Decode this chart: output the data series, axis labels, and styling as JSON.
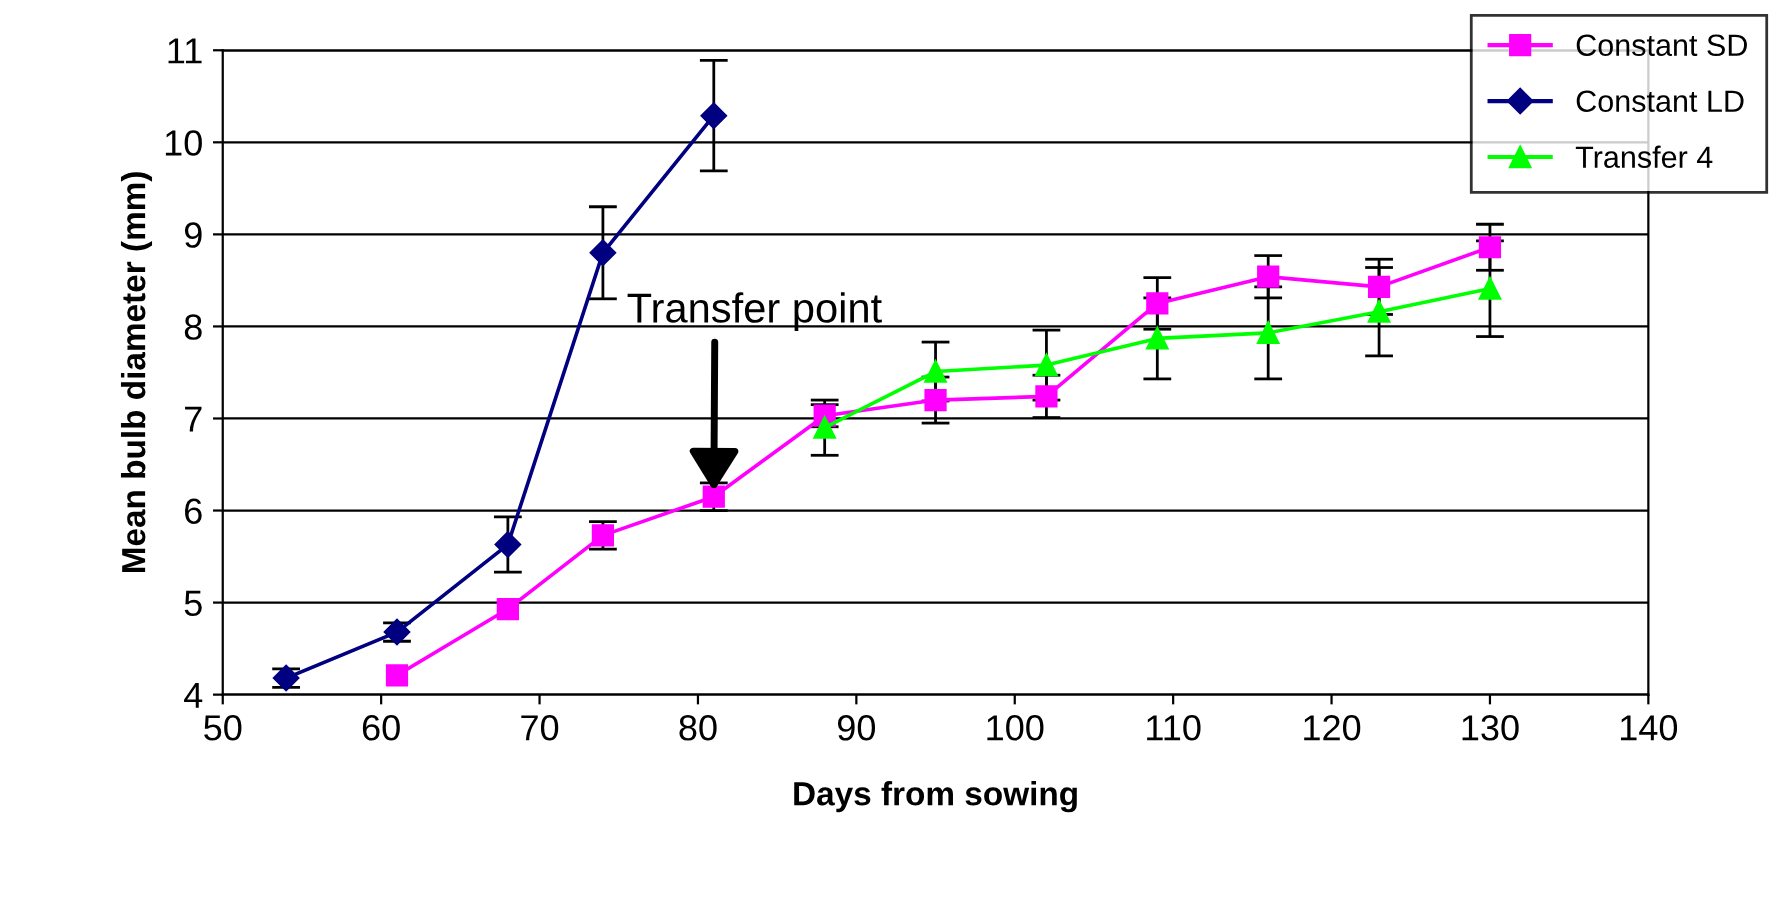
{
  "chart_data": {
    "type": "line",
    "xlabel": "Days from sowing",
    "ylabel": "Mean bulb diameter (mm)",
    "x": [
      54,
      61,
      68,
      74,
      81,
      88,
      95,
      102,
      109,
      116,
      123,
      130
    ],
    "series": [
      {
        "name": "Constant SD",
        "color": "#ff00ff",
        "marker": "square",
        "values": [
          null,
          4.21,
          4.93,
          5.73,
          6.15,
          7.03,
          7.2,
          7.24,
          8.25,
          8.54,
          8.43,
          8.86
        ],
        "errors": [
          null,
          null,
          null,
          0.15,
          0.15,
          0.12,
          0.25,
          0.23,
          0.28,
          0.23,
          0.3,
          0.25
        ]
      },
      {
        "name": "Constant LD",
        "color": "#000080",
        "marker": "diamond",
        "values": [
          4.18,
          4.68,
          5.63,
          8.8,
          10.29,
          null,
          null,
          null,
          null,
          null,
          null,
          null
        ],
        "errors": [
          0.1,
          0.1,
          0.3,
          0.5,
          0.6,
          null,
          null,
          null,
          null,
          null,
          null,
          null
        ]
      },
      {
        "name": "Transfer 4",
        "color": "#00ff00",
        "marker": "triangle",
        "values": [
          null,
          null,
          null,
          null,
          null,
          6.9,
          7.51,
          7.58,
          7.87,
          7.93,
          8.16,
          8.41
        ],
        "errors": [
          null,
          null,
          null,
          null,
          null,
          0.3,
          0.32,
          0.38,
          0.44,
          0.5,
          0.48,
          0.52
        ]
      }
    ],
    "xlim": [
      50,
      140
    ],
    "xticks": [
      50,
      60,
      70,
      80,
      90,
      100,
      110,
      120,
      130,
      140
    ],
    "ylim": [
      4,
      11
    ],
    "yticks": [
      4,
      5,
      6,
      7,
      8,
      9,
      10,
      11
    ],
    "grid": "y",
    "legend": "top right",
    "line_style": "solid",
    "annotations": [
      {
        "text": "Transfer point",
        "x": 81,
        "y": 6.15
      }
    ]
  }
}
